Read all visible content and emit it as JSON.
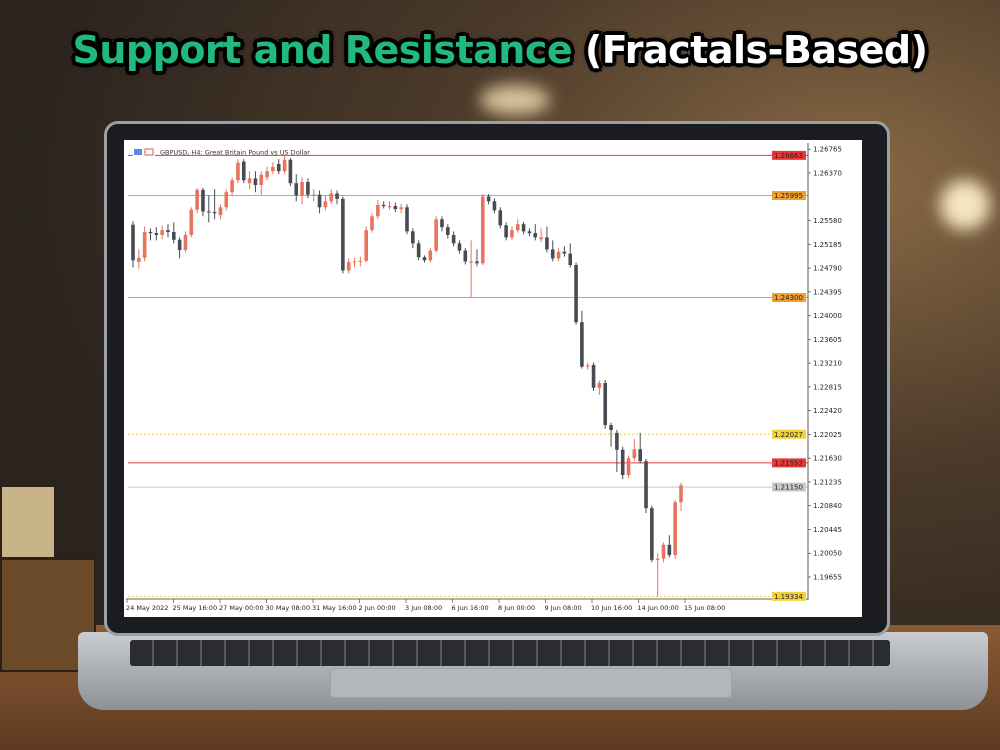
{
  "headline": {
    "part1": "Support and Resistance",
    "part2": "(Fractals-Based)"
  },
  "colors": {
    "headline_green": "#22b981",
    "bull_candle": "#e8735e",
    "bear_candle": "#474b53",
    "red_line": "#e53935",
    "orange_line": "#f0a030",
    "yellow_line": "#f2d23a",
    "gray_line": "#c8c8c8"
  },
  "chart_data": {
    "type": "candlestick",
    "title": "GBPUSD, H4:  Great Britain Pound vs US Dollar",
    "ylim": [
      1.1925,
      1.268
    ],
    "y_ticks": [
      "1.26765",
      "1.26370",
      "1.25580",
      "1.25185",
      "1.24790",
      "1.24395",
      "1.24000",
      "1.23605",
      "1.23210",
      "1.22815",
      "1.22420",
      "1.22025",
      "1.21630",
      "1.21235",
      "1.20840",
      "1.20445",
      "1.20050",
      "1.19655"
    ],
    "x_ticks": [
      "24 May 2022",
      "25 May 16:00",
      "27 May 00:00",
      "30 May 08:00",
      "31 May 16:00",
      "2 Jun 00:00",
      "3 Jun 08:00",
      "6 Jun 16:00",
      "8 Jun 00:00",
      "9 Jun 08:00",
      "10 Jun 16:00",
      "14 Jun 00:00",
      "15 Jun 08:00"
    ],
    "levels": [
      {
        "price": "1.26663",
        "value": 1.26663,
        "color": "red",
        "style": "solid"
      },
      {
        "price": "1.25995",
        "value": 1.25995,
        "color": "orange",
        "style": "solid"
      },
      {
        "price": "1.24300",
        "value": 1.243,
        "color": "orange",
        "style": "solid"
      },
      {
        "price": "1.22027",
        "value": 1.22027,
        "color": "yellow",
        "style": "dotted"
      },
      {
        "price": "1.21552",
        "value": 1.21552,
        "color": "red",
        "style": "solid"
      },
      {
        "price": "1.21150",
        "value": 1.2115,
        "color": "gray",
        "style": "solid"
      },
      {
        "price": "1.19334",
        "value": 1.19334,
        "color": "yellow",
        "style": "dotted"
      }
    ],
    "ohlc": [
      [
        1.2551,
        1.2557,
        1.248,
        1.2492
      ],
      [
        1.2489,
        1.251,
        1.2478,
        1.2496
      ],
      [
        1.2496,
        1.2548,
        1.249,
        1.2539
      ],
      [
        1.2539,
        1.2545,
        1.2525,
        1.2537
      ],
      [
        1.2537,
        1.2547,
        1.2525,
        1.2534
      ],
      [
        1.2534,
        1.255,
        1.2527,
        1.2542
      ],
      [
        1.2542,
        1.2552,
        1.253,
        1.2539
      ],
      [
        1.2539,
        1.2555,
        1.252,
        1.2526
      ],
      [
        1.2526,
        1.253,
        1.2495,
        1.2509
      ],
      [
        1.2509,
        1.254,
        1.2505,
        1.2534
      ],
      [
        1.2534,
        1.258,
        1.253,
        1.2576
      ],
      [
        1.2576,
        1.2612,
        1.257,
        1.2609
      ],
      [
        1.2609,
        1.2612,
        1.2565,
        1.2573
      ],
      [
        1.2573,
        1.26,
        1.2555,
        1.2572
      ],
      [
        1.2572,
        1.261,
        1.256,
        1.257
      ],
      [
        1.2567,
        1.2585,
        1.256,
        1.258
      ],
      [
        1.258,
        1.261,
        1.2575,
        1.2605
      ],
      [
        1.2605,
        1.263,
        1.26,
        1.2625
      ],
      [
        1.2625,
        1.266,
        1.262,
        1.2654
      ],
      [
        1.2656,
        1.266,
        1.262,
        1.2625
      ],
      [
        1.262,
        1.264,
        1.261,
        1.2628
      ],
      [
        1.2628,
        1.264,
        1.2605,
        1.2617
      ],
      [
        1.2617,
        1.264,
        1.26,
        1.2634
      ],
      [
        1.263,
        1.2648,
        1.2625,
        1.264
      ],
      [
        1.264,
        1.2655,
        1.2635,
        1.2647
      ],
      [
        1.2652,
        1.266,
        1.2635,
        1.264
      ],
      [
        1.264,
        1.2668,
        1.2635,
        1.2659
      ],
      [
        1.2659,
        1.2662,
        1.2615,
        1.262
      ],
      [
        1.262,
        1.2635,
        1.259,
        1.26
      ],
      [
        1.26,
        1.263,
        1.2585,
        1.2622
      ],
      [
        1.2622,
        1.2628,
        1.2595,
        1.2601
      ],
      [
        1.2601,
        1.261,
        1.259,
        1.2601
      ],
      [
        1.2601,
        1.2608,
        1.257,
        1.258
      ],
      [
        1.258,
        1.26,
        1.2575,
        1.259
      ],
      [
        1.259,
        1.261,
        1.2585,
        1.2603
      ],
      [
        1.2603,
        1.2608,
        1.2585,
        1.2594
      ],
      [
        1.2594,
        1.2598,
        1.247,
        1.2475
      ],
      [
        1.2475,
        1.2495,
        1.247,
        1.2489
      ],
      [
        1.2489,
        1.2496,
        1.248,
        1.249
      ],
      [
        1.249,
        1.2498,
        1.2482,
        1.2491
      ],
      [
        1.2491,
        1.2548,
        1.2488,
        1.2542
      ],
      [
        1.2542,
        1.257,
        1.2538,
        1.2565
      ],
      [
        1.2565,
        1.2592,
        1.256,
        1.2584
      ],
      [
        1.2584,
        1.259,
        1.2578,
        1.2582
      ],
      [
        1.258,
        1.259,
        1.2576,
        1.2582
      ],
      [
        1.2582,
        1.2588,
        1.2572,
        1.2577
      ],
      [
        1.2577,
        1.2586,
        1.257,
        1.258
      ],
      [
        1.258,
        1.2585,
        1.2535,
        1.254
      ],
      [
        1.254,
        1.2545,
        1.2512,
        1.252
      ],
      [
        1.252,
        1.2525,
        1.2492,
        1.2497
      ],
      [
        1.2497,
        1.25,
        1.2488,
        1.2492
      ],
      [
        1.2492,
        1.2512,
        1.2488,
        1.2508
      ],
      [
        1.2508,
        1.2565,
        1.2505,
        1.256
      ],
      [
        1.256,
        1.2565,
        1.254,
        1.2547
      ],
      [
        1.2547,
        1.2552,
        1.2528,
        1.2534
      ],
      [
        1.2534,
        1.254,
        1.2515,
        1.252
      ],
      [
        1.252,
        1.2525,
        1.2503,
        1.2508
      ],
      [
        1.2508,
        1.2512,
        1.2485,
        1.249
      ],
      [
        1.2488,
        1.2525,
        1.2431,
        1.249
      ],
      [
        1.249,
        1.251,
        1.2482,
        1.2487
      ],
      [
        1.2487,
        1.2602,
        1.2484,
        1.2598
      ],
      [
        1.2598,
        1.2602,
        1.2585,
        1.259
      ],
      [
        1.259,
        1.2595,
        1.257,
        1.2575
      ],
      [
        1.2575,
        1.258,
        1.2545,
        1.255
      ],
      [
        1.255,
        1.2555,
        1.2525,
        1.253
      ],
      [
        1.253,
        1.2548,
        1.2526,
        1.2542
      ],
      [
        1.2542,
        1.256,
        1.2538,
        1.2552
      ],
      [
        1.2552,
        1.2556,
        1.2535,
        1.254
      ],
      [
        1.254,
        1.2545,
        1.2532,
        1.2537
      ],
      [
        1.2537,
        1.2552,
        1.2525,
        1.253
      ],
      [
        1.2527,
        1.2545,
        1.2522,
        1.253
      ],
      [
        1.253,
        1.2548,
        1.2505,
        1.251
      ],
      [
        1.251,
        1.2525,
        1.249,
        1.2495
      ],
      [
        1.2495,
        1.2512,
        1.249,
        1.2506
      ],
      [
        1.2506,
        1.2515,
        1.2498,
        1.2503
      ],
      [
        1.2503,
        1.252,
        1.248,
        1.2484
      ],
      [
        1.2484,
        1.2488,
        1.2385,
        1.2389
      ],
      [
        1.2389,
        1.2408,
        1.2312,
        1.2315
      ],
      [
        1.2315,
        1.2322,
        1.231,
        1.2317
      ],
      [
        1.2318,
        1.2322,
        1.2275,
        1.228
      ],
      [
        1.228,
        1.2292,
        1.2268,
        1.2288
      ],
      [
        1.2288,
        1.2293,
        1.2212,
        1.2218
      ],
      [
        1.2218,
        1.2222,
        1.2182,
        1.221
      ],
      [
        1.2205,
        1.221,
        1.214,
        1.2177
      ],
      [
        1.2177,
        1.2182,
        1.2128,
        1.2135
      ],
      [
        1.2135,
        1.2167,
        1.213,
        1.2163
      ],
      [
        1.2163,
        1.2195,
        1.2158,
        1.2178
      ],
      [
        1.2178,
        1.2205,
        1.2154,
        1.2158
      ],
      [
        1.2158,
        1.2162,
        1.2072,
        1.208
      ],
      [
        1.208,
        1.2084,
        1.199,
        1.1994
      ],
      [
        1.1994,
        1.2005,
        1.1933,
        1.1996
      ],
      [
        1.1996,
        1.2023,
        1.199,
        1.2019
      ],
      [
        1.2019,
        1.2035,
        1.1998,
        1.2002
      ],
      [
        1.2002,
        1.2094,
        1.1996,
        1.209
      ],
      [
        1.209,
        1.2122,
        1.2075,
        1.2118
      ]
    ]
  }
}
